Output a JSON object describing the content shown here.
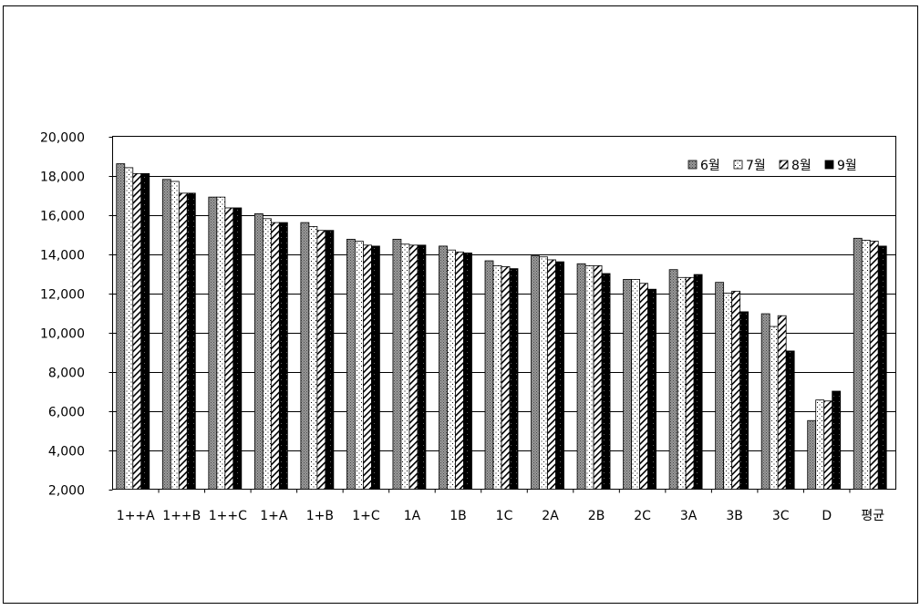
{
  "chart_data": {
    "type": "bar",
    "title": "",
    "xlabel": "",
    "ylabel": "",
    "ylim": [
      2000,
      20000
    ],
    "yticks": [
      "20,000",
      "18,000",
      "16,000",
      "14,000",
      "12,000",
      "10,000",
      "8,000",
      "6,000",
      "4,000",
      "2,000"
    ],
    "ytick_values": [
      20000,
      18000,
      16000,
      14000,
      12000,
      10000,
      8000,
      6000,
      4000,
      2000
    ],
    "grid": true,
    "legend_position": "top-right",
    "categories": [
      "1++A",
      "1++B",
      "1++C",
      "1+A",
      "1+B",
      "1+C",
      "1A",
      "1B",
      "1C",
      "2A",
      "2B",
      "2C",
      "3A",
      "3B",
      "3C",
      "D",
      "평균"
    ],
    "series": [
      {
        "name": "6월",
        "pattern": "dark-gray",
        "color": "#8a8a8a",
        "values": [
          18600,
          17800,
          16900,
          16050,
          15600,
          14750,
          14750,
          14400,
          13650,
          13900,
          13500,
          12700,
          13200,
          12550,
          10950,
          5500,
          14800
        ]
      },
      {
        "name": "7월",
        "pattern": "dots",
        "color": "#ffffff",
        "values": [
          18400,
          17700,
          16900,
          15800,
          15400,
          14650,
          14500,
          14200,
          13400,
          13850,
          13400,
          12700,
          12800,
          12000,
          10300,
          6550,
          14700
        ]
      },
      {
        "name": "8월",
        "pattern": "diagonal",
        "color": "#ffffff",
        "values": [
          18100,
          17100,
          16350,
          15600,
          15200,
          14450,
          14450,
          14100,
          13350,
          13700,
          13400,
          12500,
          12800,
          12100,
          10850,
          6500,
          14650
        ]
      },
      {
        "name": "9월",
        "pattern": "black",
        "color": "#000000",
        "values": [
          18100,
          17100,
          16350,
          15600,
          15200,
          14400,
          14450,
          14050,
          13250,
          13600,
          13000,
          12200,
          12950,
          11050,
          9050,
          7000,
          14400
        ]
      }
    ]
  }
}
